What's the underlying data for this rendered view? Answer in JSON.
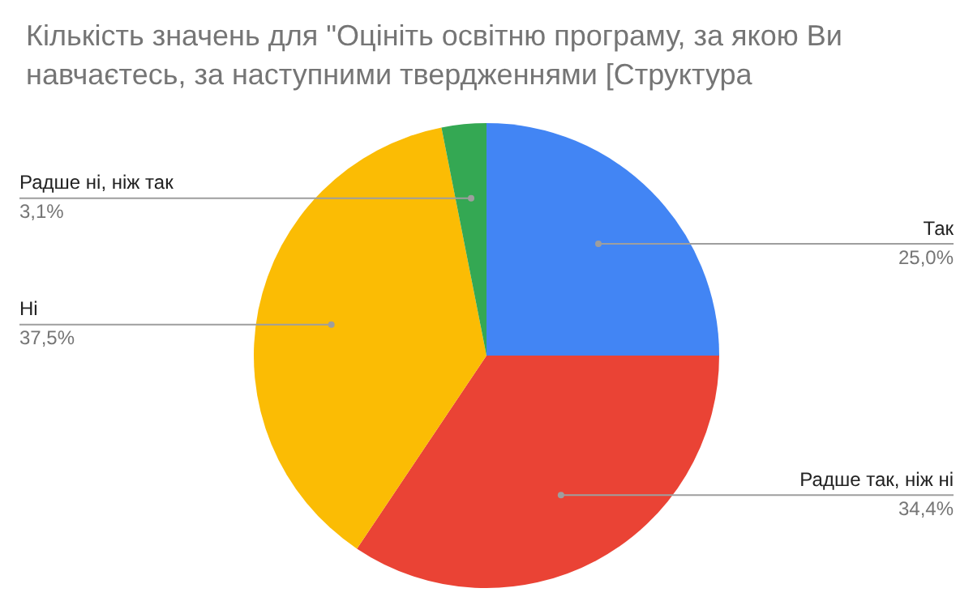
{
  "chart_data": {
    "type": "pie",
    "title": "Кількість значень для \"Оцініть освітню програму, за якою Ви навчаєтесь, за наступними твердженнями [Структура",
    "categories": [
      "Так",
      "Радше так, ніж ні",
      "Ні",
      "Радше ні, ніж так"
    ],
    "values": [
      25.0,
      34.4,
      37.5,
      3.1
    ],
    "value_labels": [
      "25,0%",
      "34,4%",
      "37,5%",
      "3,1%"
    ],
    "colors": [
      "#4285f4",
      "#ea4335",
      "#fbbc04",
      "#34a853"
    ],
    "legend": false
  }
}
